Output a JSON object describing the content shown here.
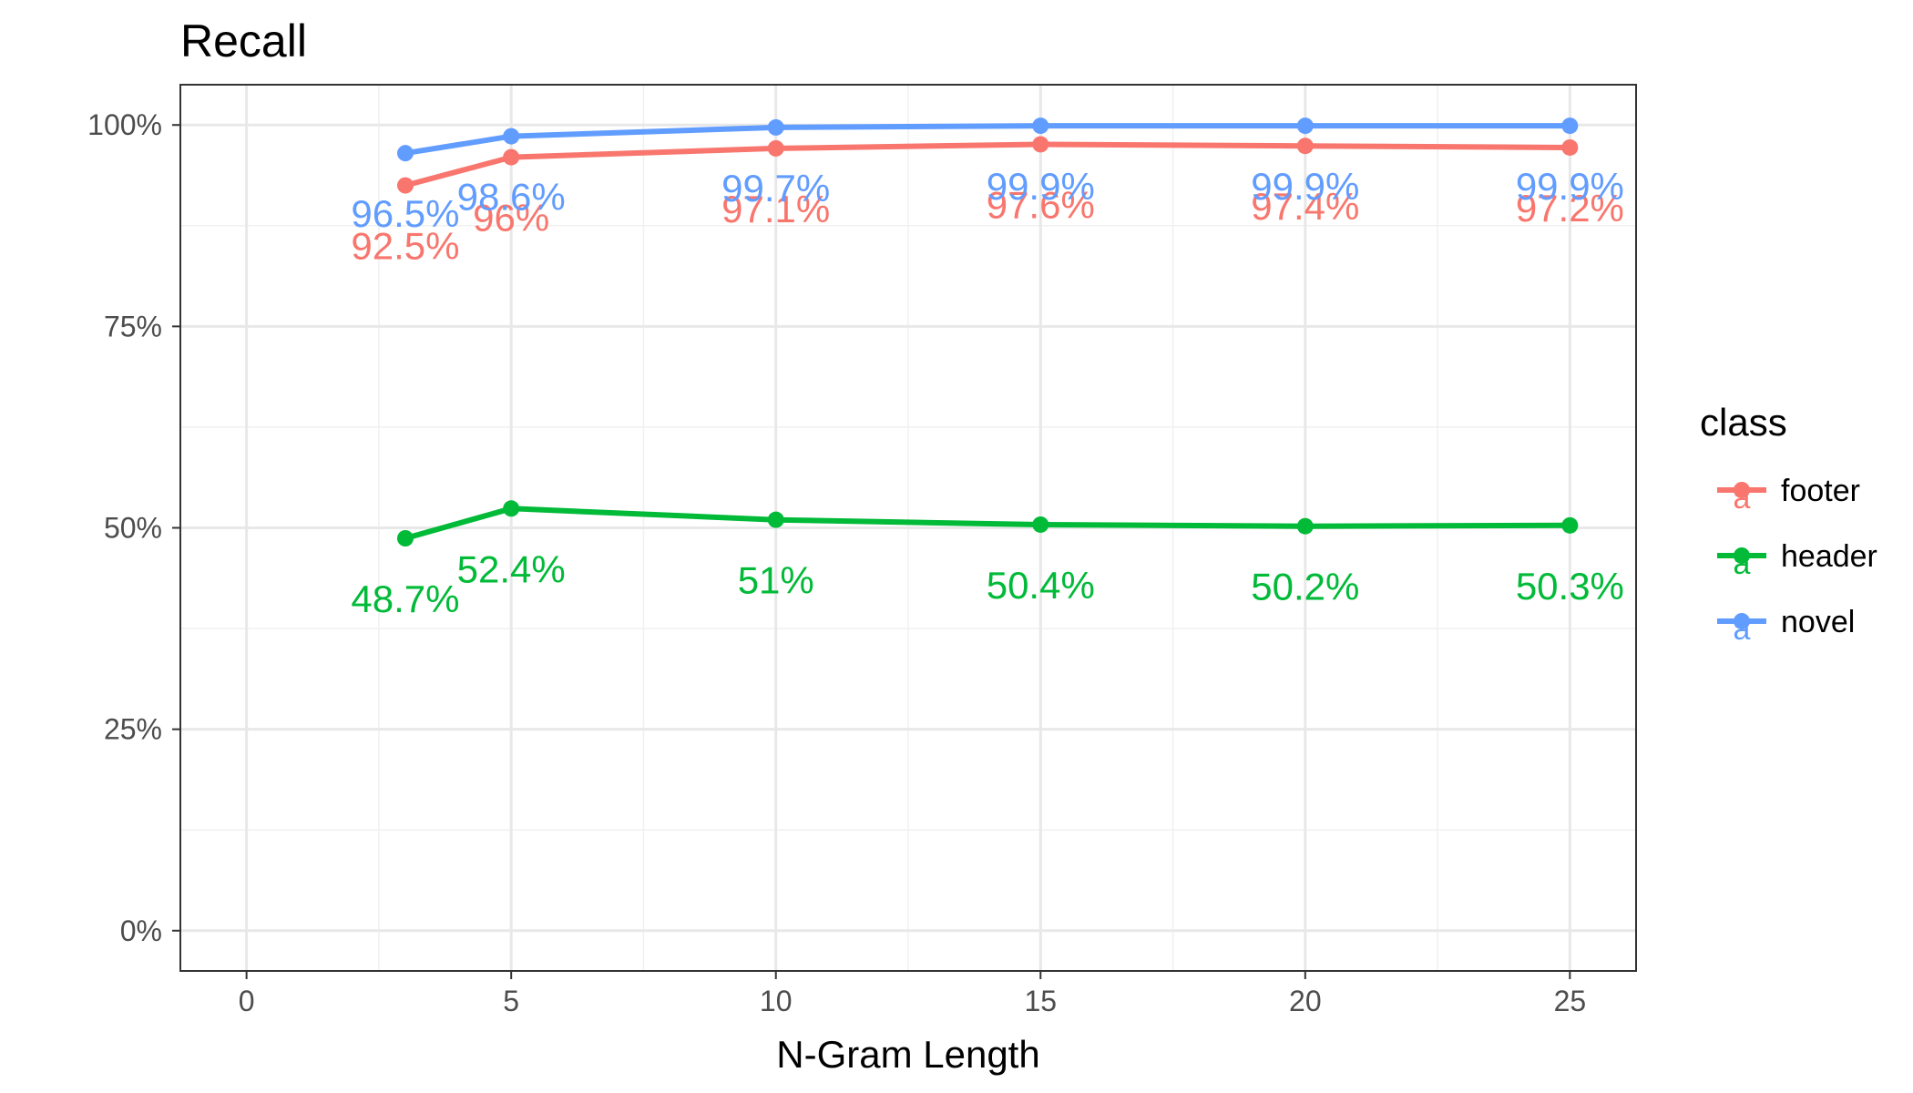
{
  "chart_data": {
    "type": "line",
    "title": "Recall",
    "xlabel": "N-Gram Length",
    "ylabel": "",
    "x": [
      3,
      5,
      10,
      15,
      20,
      25
    ],
    "xlim": [
      -1.25,
      26.25
    ],
    "ylim": [
      -0.05,
      1.05
    ],
    "x_ticks": [
      0,
      5,
      10,
      15,
      20,
      25
    ],
    "x_tick_labels": [
      "0",
      "5",
      "10",
      "15",
      "20",
      "25"
    ],
    "y_ticks": [
      0,
      0.25,
      0.5,
      0.75,
      1.0
    ],
    "y_tick_labels": [
      "0%",
      "25%",
      "50%",
      "75%",
      "100%"
    ],
    "grid": true,
    "legend": {
      "title": "class",
      "position": "right"
    },
    "series": [
      {
        "name": "footer",
        "color": "#F8766D",
        "values": [
          0.925,
          0.96,
          0.971,
          0.976,
          0.974,
          0.972
        ],
        "labels": [
          "92.5%",
          "96%",
          "97.1%",
          "97.6%",
          "97.4%",
          "97.2%"
        ]
      },
      {
        "name": "header",
        "color": "#00BA38",
        "values": [
          0.487,
          0.524,
          0.51,
          0.504,
          0.502,
          0.503
        ],
        "labels": [
          "48.7%",
          "52.4%",
          "51%",
          "50.4%",
          "50.2%",
          "50.3%"
        ]
      },
      {
        "name": "novel",
        "color": "#619CFF",
        "values": [
          0.965,
          0.986,
          0.997,
          0.999,
          0.999,
          0.999
        ],
        "labels": [
          "96.5%",
          "98.6%",
          "99.7%",
          "99.9%",
          "99.9%",
          "99.9%"
        ]
      }
    ],
    "legend_key_glyph": "a"
  }
}
